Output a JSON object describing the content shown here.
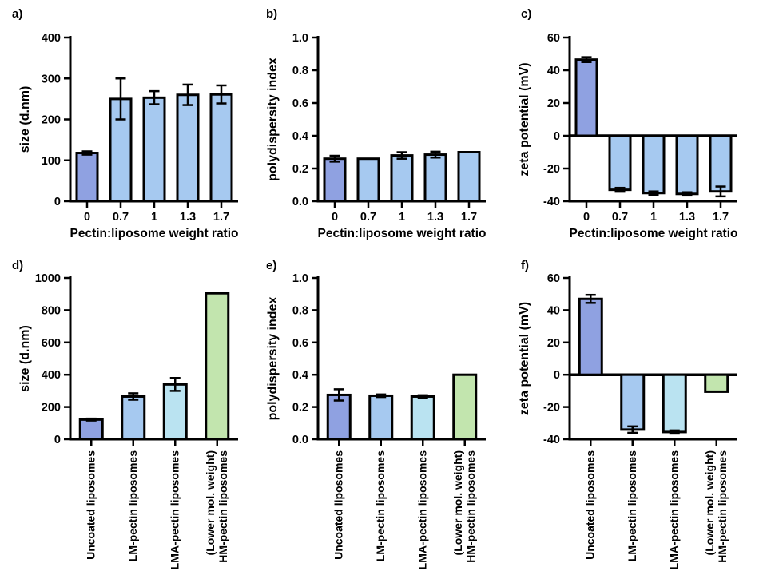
{
  "figure": {
    "background": "#ffffff",
    "description_visible_text_only": "six bar chart panels labelled a) to f)"
  },
  "colors": {
    "periwinkle": "#8fa1e1",
    "light_blue": "#a6c9f0",
    "light_cyan": "#bae3f1",
    "light_green": "#c2e5ae",
    "axis": "#000000",
    "error_bar": "#000000"
  },
  "chart_data": [
    {
      "id": "a",
      "panel_label": "a)",
      "type": "bar",
      "title": "",
      "xlabel": "Pectin:liposome weight ratio",
      "ylabel": "size (d.nm)",
      "ylim": [
        0,
        400
      ],
      "yticks": [
        0,
        100,
        200,
        300,
        400
      ],
      "ytick_labels": [
        "0",
        "100",
        "200",
        "300",
        "400"
      ],
      "categories": [
        "0",
        "0.7",
        "1",
        "1.3",
        "1.7"
      ],
      "values": [
        118,
        250,
        253,
        260,
        261
      ],
      "errors": [
        4,
        50,
        16,
        25,
        22
      ],
      "bar_colors": [
        "periwinkle",
        "light_blue",
        "light_blue",
        "light_blue",
        "light_blue"
      ],
      "grid": false,
      "legend": "none"
    },
    {
      "id": "b",
      "panel_label": "b)",
      "type": "bar",
      "title": "",
      "xlabel": "Pectin:liposome weight ratio",
      "ylabel": "polydispersity index",
      "ylim": [
        0,
        1.0
      ],
      "yticks": [
        0,
        0.2,
        0.4,
        0.6,
        0.8,
        1.0
      ],
      "ytick_labels": [
        "0.0",
        "0.2",
        "0.4",
        "0.6",
        "0.8",
        "1.0"
      ],
      "categories": [
        "0",
        "0.7",
        "1",
        "1.3",
        "1.7"
      ],
      "values": [
        0.26,
        0.26,
        0.28,
        0.285,
        0.3
      ],
      "errors": [
        0.018,
        0,
        0.02,
        0.018,
        0
      ],
      "bar_colors": [
        "periwinkle",
        "light_blue",
        "light_blue",
        "light_blue",
        "light_blue"
      ],
      "grid": false,
      "legend": "none"
    },
    {
      "id": "c",
      "panel_label": "c)",
      "type": "bar",
      "title": "",
      "xlabel": "Pectin:liposome weight ratio",
      "ylabel": "zeta potential (mV)",
      "ylim": [
        -40,
        60
      ],
      "yticks": [
        -40,
        -20,
        0,
        20,
        40,
        60
      ],
      "ytick_labels": [
        "-40",
        "-20",
        "0",
        "20",
        "40",
        "60"
      ],
      "categories": [
        "0",
        "0.7",
        "1",
        "1.3",
        "1.7"
      ],
      "values": [
        46.5,
        -33,
        -35,
        -35.5,
        -34
      ],
      "errors": [
        1.5,
        1.2,
        1,
        1,
        3
      ],
      "bar_colors": [
        "periwinkle",
        "light_blue",
        "light_blue",
        "light_blue",
        "light_blue"
      ],
      "grid": false,
      "legend": "none"
    },
    {
      "id": "d",
      "panel_label": "d)",
      "type": "bar",
      "title": "",
      "xlabel": "",
      "ylabel": "size (d.nm)",
      "ylim": [
        0,
        1000
      ],
      "yticks": [
        0,
        200,
        400,
        600,
        800,
        1000
      ],
      "ytick_labels": [
        "0",
        "200",
        "400",
        "600",
        "800",
        "1000"
      ],
      "categories": [
        "Uncoated liposomes",
        "LM-pectin liposomes",
        "LMA-pectin liposomes",
        [
          "(Lower mol. weight)",
          "HM-pectin liposomes"
        ]
      ],
      "values": [
        122,
        265,
        340,
        905
      ],
      "errors": [
        6,
        20,
        40,
        0
      ],
      "bar_colors": [
        "periwinkle",
        "light_blue",
        "light_cyan",
        "light_green"
      ],
      "grid": false,
      "legend": "none"
    },
    {
      "id": "e",
      "panel_label": "e)",
      "type": "bar",
      "title": "",
      "xlabel": "",
      "ylabel": "polydispersity index",
      "ylim": [
        0,
        1.0
      ],
      "yticks": [
        0,
        0.2,
        0.4,
        0.6,
        0.8,
        1.0
      ],
      "ytick_labels": [
        "0.0",
        "0.2",
        "0.4",
        "0.6",
        "0.8",
        "1.0"
      ],
      "categories": [
        "Uncoated liposomes",
        "LM-pectin liposomes",
        "LMA-pectin liposomes",
        [
          "(Lower mol. weight)",
          "HM-pectin liposomes"
        ]
      ],
      "values": [
        0.275,
        0.27,
        0.265,
        0.4
      ],
      "errors": [
        0.035,
        0.008,
        0.008,
        0
      ],
      "bar_colors": [
        "periwinkle",
        "light_blue",
        "light_cyan",
        "light_green"
      ],
      "grid": false,
      "legend": "none"
    },
    {
      "id": "f",
      "panel_label": "f)",
      "type": "bar",
      "title": "",
      "xlabel": "",
      "ylabel": "zeta potential (mV)",
      "ylim": [
        -40,
        60
      ],
      "yticks": [
        -40,
        -20,
        0,
        20,
        40,
        60
      ],
      "ytick_labels": [
        "-40",
        "-20",
        "0",
        "20",
        "40",
        "60"
      ],
      "categories": [
        "Uncoated liposomes",
        "LM-pectin liposomes",
        "LMA-pectin liposomes",
        [
          "(Lower mol. weight)",
          "HM-pectin liposomes"
        ]
      ],
      "values": [
        47,
        -34,
        -35.5,
        -10.5
      ],
      "errors": [
        2.5,
        2,
        1,
        0
      ],
      "bar_colors": [
        "periwinkle",
        "light_blue",
        "light_cyan",
        "light_green"
      ],
      "grid": false,
      "legend": "none"
    }
  ]
}
